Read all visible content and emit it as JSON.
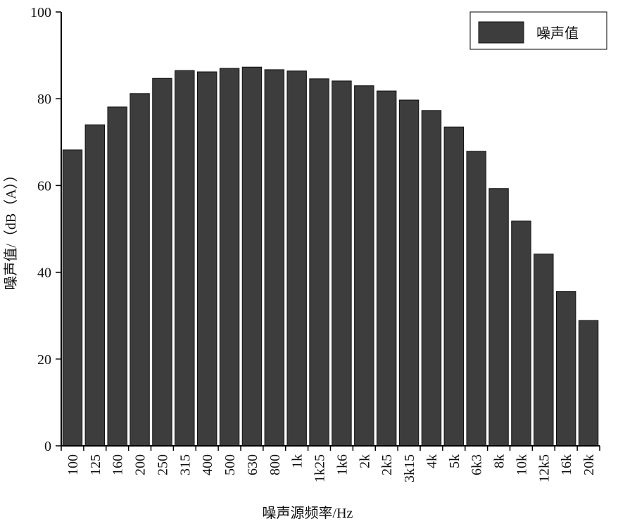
{
  "chart_data": {
    "type": "bar",
    "x_label": "噪声源频率/Hz",
    "y_label": "噪声值/（dB（A））",
    "categories": [
      "100",
      "125",
      "160",
      "200",
      "250",
      "315",
      "400",
      "500",
      "630",
      "800",
      "1k",
      "1k25",
      "1k6",
      "2k",
      "2k5",
      "3k15",
      "4k",
      "5k",
      "6k3",
      "8k",
      "10k",
      "12k5",
      "16k",
      "20k"
    ],
    "series": [
      {
        "name": "噪声值",
        "color": "#3d3d3d",
        "values": [
          68.2,
          74.0,
          78.1,
          81.2,
          84.7,
          86.5,
          86.2,
          87.0,
          87.3,
          86.7,
          86.4,
          84.6,
          84.1,
          83.0,
          81.8,
          79.7,
          77.3,
          73.5,
          67.9,
          59.3,
          51.8,
          44.2,
          35.6,
          28.9
        ]
      }
    ],
    "ylim": [
      0,
      100
    ],
    "yticks": [
      0,
      20,
      40,
      60,
      80,
      100
    ],
    "grid": false,
    "legend": "upper right"
  }
}
